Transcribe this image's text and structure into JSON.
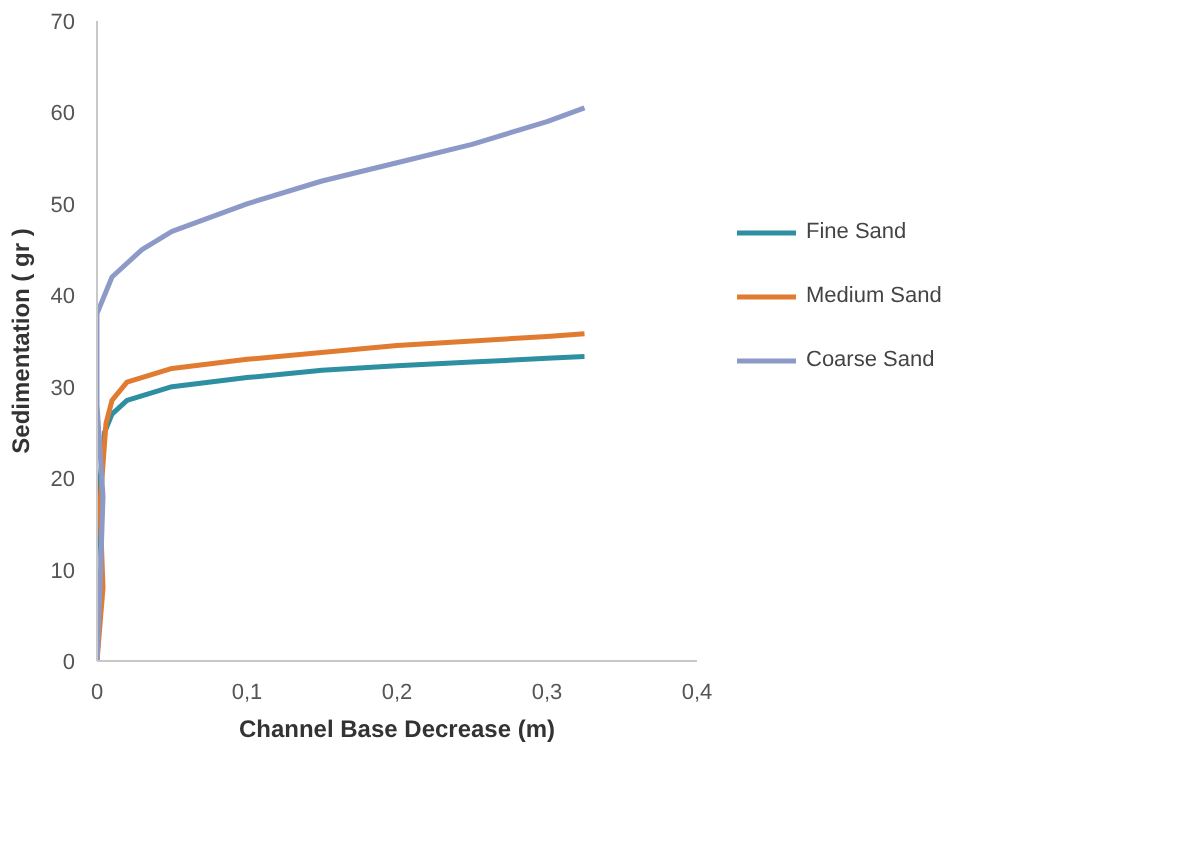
{
  "chart_data": {
    "type": "line",
    "xlabel": "Channel Base Decrease (m)",
    "ylabel": "Sedimentation ( gr )",
    "xlim": [
      0,
      0.4
    ],
    "xticks": [
      0,
      {
        "value": 0.1,
        "label": "0,1"
      },
      {
        "value": 0.2,
        "label": "0,2"
      },
      {
        "value": 0.3,
        "label": "0,3"
      },
      {
        "value": 0.4,
        "label": "0,4"
      }
    ],
    "ylim": [
      0,
      70
    ],
    "yticks": [
      0,
      10,
      20,
      30,
      40,
      50,
      60,
      70
    ],
    "grid": false,
    "legend": "right",
    "series": [
      {
        "name": "Fine Sand",
        "color": "#2e8fa3",
        "x": [
          0,
          0.003,
          0.001,
          0.005,
          0.01,
          0.02,
          0.05,
          0.1,
          0.15,
          0.2,
          0.25,
          0.3,
          0.325
        ],
        "values": [
          0,
          10,
          18,
          25,
          27,
          28.5,
          30,
          31,
          31.8,
          32.3,
          32.7,
          33.1,
          33.3
        ]
      },
      {
        "name": "Medium Sand",
        "color": "#e07b30",
        "x": [
          0,
          0.004,
          0.002,
          0.006,
          0.01,
          0.02,
          0.05,
          0.1,
          0.2,
          0.3,
          0.325
        ],
        "values": [
          0,
          8,
          17,
          26,
          28.5,
          30.5,
          32,
          33,
          34.5,
          35.5,
          35.8
        ]
      },
      {
        "name": "Coarse Sand",
        "color": "#8d9ac8",
        "x": [
          0,
          0.002,
          0.004,
          0,
          0,
          0.01,
          0.03,
          0.05,
          0.1,
          0.15,
          0.2,
          0.25,
          0.3,
          0.325
        ],
        "values": [
          0,
          8,
          18,
          28,
          38,
          42,
          45,
          47,
          50,
          52.5,
          54.5,
          56.5,
          59,
          60.5
        ]
      }
    ]
  }
}
